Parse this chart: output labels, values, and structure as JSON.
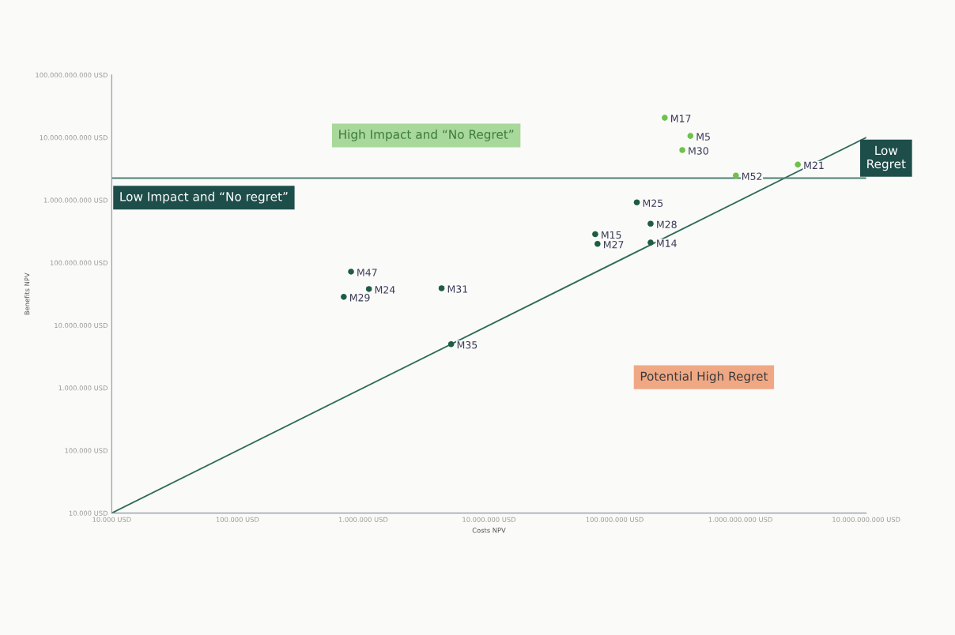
{
  "chart_data": {
    "type": "scatter",
    "xlabel": "Costs NPV",
    "ylabel": "Benefits NPV",
    "log": "xy",
    "grid": false,
    "marker": "circle",
    "xlim": [
      10000,
      10000000000
    ],
    "ylim": [
      10000,
      100000000000
    ],
    "xticks": [
      {
        "value": 10000,
        "label": "10.000 USD"
      },
      {
        "value": 100000,
        "label": "100.000 USD"
      },
      {
        "value": 1000000,
        "label": "1.000.000 USD"
      },
      {
        "value": 10000000,
        "label": "10.000.000 USD"
      },
      {
        "value": 100000000,
        "label": "100.000.000 USD"
      },
      {
        "value": 1000000000,
        "label": "1.000.000.000 USD"
      },
      {
        "value": 10000000000,
        "label": "10.000.000.000 USD"
      }
    ],
    "yticks": [
      {
        "value": 10000,
        "label": "10.000 USD"
      },
      {
        "value": 100000,
        "label": "100.000 USD"
      },
      {
        "value": 1000000,
        "label": "1.000.000 USD"
      },
      {
        "value": 10000000,
        "label": "10.000.000 USD"
      },
      {
        "value": 100000000,
        "label": "100.000.000 USD"
      },
      {
        "value": 1000000000,
        "label": "1.000.000.000 USD"
      },
      {
        "value": 10000000000,
        "label": "10.000.000.000 USD"
      },
      {
        "value": 100000000000,
        "label": "100.000.000.000 USD"
      }
    ],
    "series": [
      {
        "color": "#1e5c45",
        "x": [
          800000,
          1110000,
          700000,
          4200000,
          5000000,
          70000000,
          73000000,
          193000000,
          193000000,
          150000000
        ],
        "values": [
          72000000,
          38000000,
          28500000,
          39000000,
          5000000,
          286000000,
          200000000,
          210000000,
          420000000,
          920000000
        ],
        "value_labels": [
          "M47",
          "M24",
          "M29",
          "M31",
          "M35",
          "M15",
          "M27",
          "M14",
          "M28",
          "M25"
        ]
      },
      {
        "color": "#6cc24a",
        "x": [
          250000000,
          400000000,
          345000000,
          920000000,
          2860000000
        ],
        "values": [
          20700000000,
          10600000000,
          6300000000,
          2470000000,
          3700000000
        ],
        "value_labels": [
          "M17",
          "M5",
          "M30",
          "M52",
          "M21"
        ]
      },
      {
        "type": "line",
        "marker": "none",
        "color": "#2e6b5a",
        "x": [
          10000,
          10000000000
        ],
        "values": [
          10000,
          10000000000
        ]
      }
    ],
    "ref_lines": [
      {
        "axis": "y",
        "value": 2250000000,
        "color": "#4f7f73"
      }
    ],
    "annotations": [
      "High Impact and “No Regret”",
      "Low Impact and “No regret”",
      "Low\nRegret",
      "Potential High Regret"
    ]
  }
}
